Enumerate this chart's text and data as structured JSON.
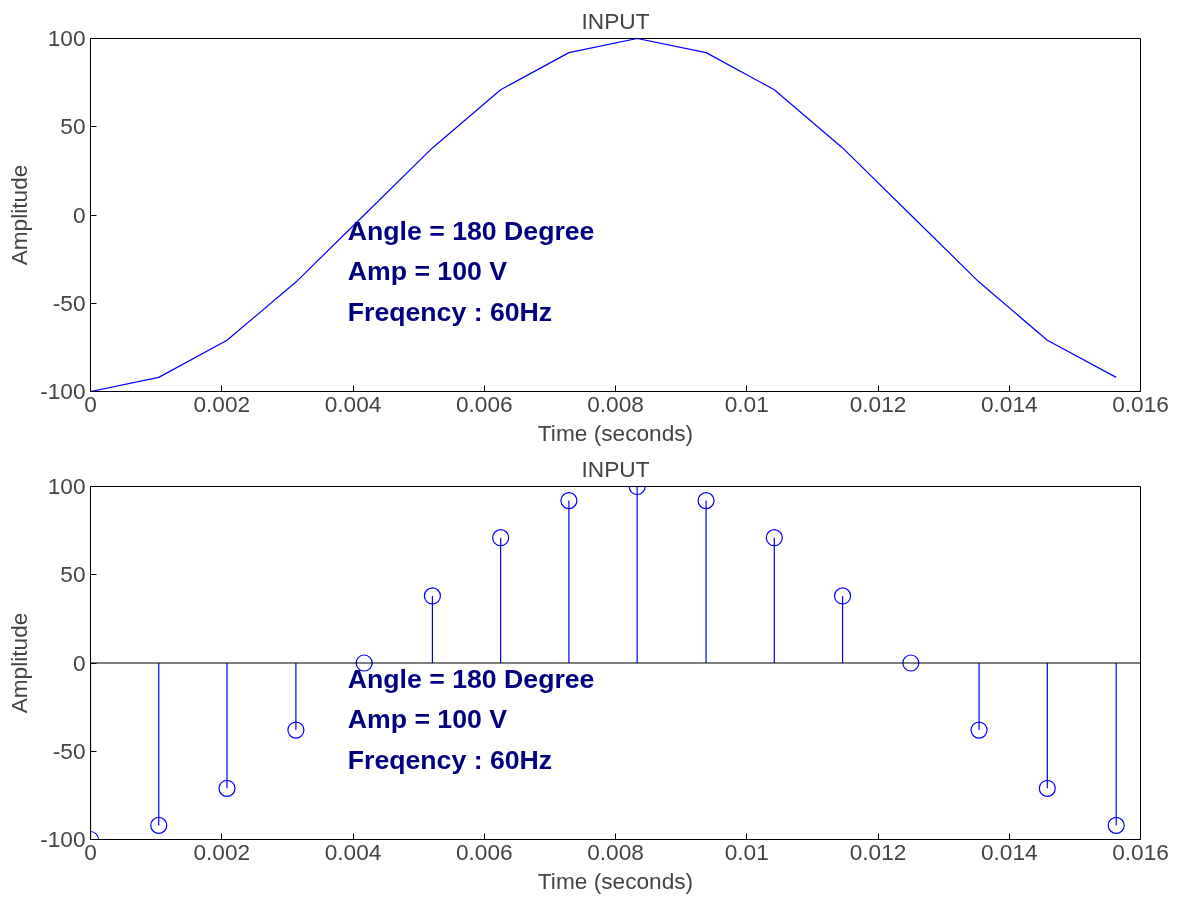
{
  "chart_data": [
    {
      "type": "line",
      "title": "INPUT",
      "xlabel": "Time (seconds)",
      "ylabel": "Amplitude",
      "x": [
        0,
        0.00104,
        0.00208,
        0.00313,
        0.00417,
        0.00521,
        0.00625,
        0.00729,
        0.00833,
        0.00938,
        0.01042,
        0.01146,
        0.0125,
        0.01354,
        0.01458,
        0.01563
      ],
      "series": [
        {
          "color": "#0000ff",
          "values": [
            -100,
            -92,
            -71,
            -38,
            0,
            38,
            71,
            92,
            100,
            92,
            71,
            38,
            0,
            -38,
            -71,
            -92
          ]
        }
      ],
      "xlim": [
        0,
        0.016
      ],
      "xticks": [
        0,
        0.002,
        0.004,
        0.006,
        0.008,
        0.01,
        0.012,
        0.014,
        0.016
      ],
      "ylim": [
        -100,
        100
      ],
      "yticks": [
        -100,
        -50,
        0,
        50,
        100
      ],
      "grid": false,
      "marker": "none",
      "line_style": "solid",
      "annotations": [
        "Angle =   180 Degree",
        "Amp =   100 V",
        "Freqency :   60Hz"
      ]
    },
    {
      "type": "lollipop",
      "title": "INPUT",
      "xlabel": "Time (seconds)",
      "ylabel": "Amplitude",
      "x": [
        0,
        0.00104,
        0.00208,
        0.00313,
        0.00417,
        0.00521,
        0.00625,
        0.00729,
        0.00833,
        0.00938,
        0.01042,
        0.01146,
        0.0125,
        0.01354,
        0.01458,
        0.01563
      ],
      "series": [
        {
          "color": "#0000ff",
          "values": [
            -100,
            -92,
            -71,
            -38,
            0,
            38,
            71,
            92,
            100,
            92,
            71,
            38,
            0,
            -38,
            -71,
            -92
          ]
        }
      ],
      "xlim": [
        0,
        0.016
      ],
      "xticks": [
        0,
        0.002,
        0.004,
        0.006,
        0.008,
        0.01,
        0.012,
        0.014,
        0.016
      ],
      "ylim": [
        -100,
        100
      ],
      "yticks": [
        -100,
        -50,
        0,
        50,
        100
      ],
      "grid": false,
      "marker": "circle",
      "ref_lines": [
        {
          "axis": "y",
          "value": 0,
          "color": "#000000"
        }
      ],
      "annotations": [
        "Angle =   180 Degree",
        "Amp =   100 V",
        "Freqency :   60Hz"
      ]
    }
  ]
}
